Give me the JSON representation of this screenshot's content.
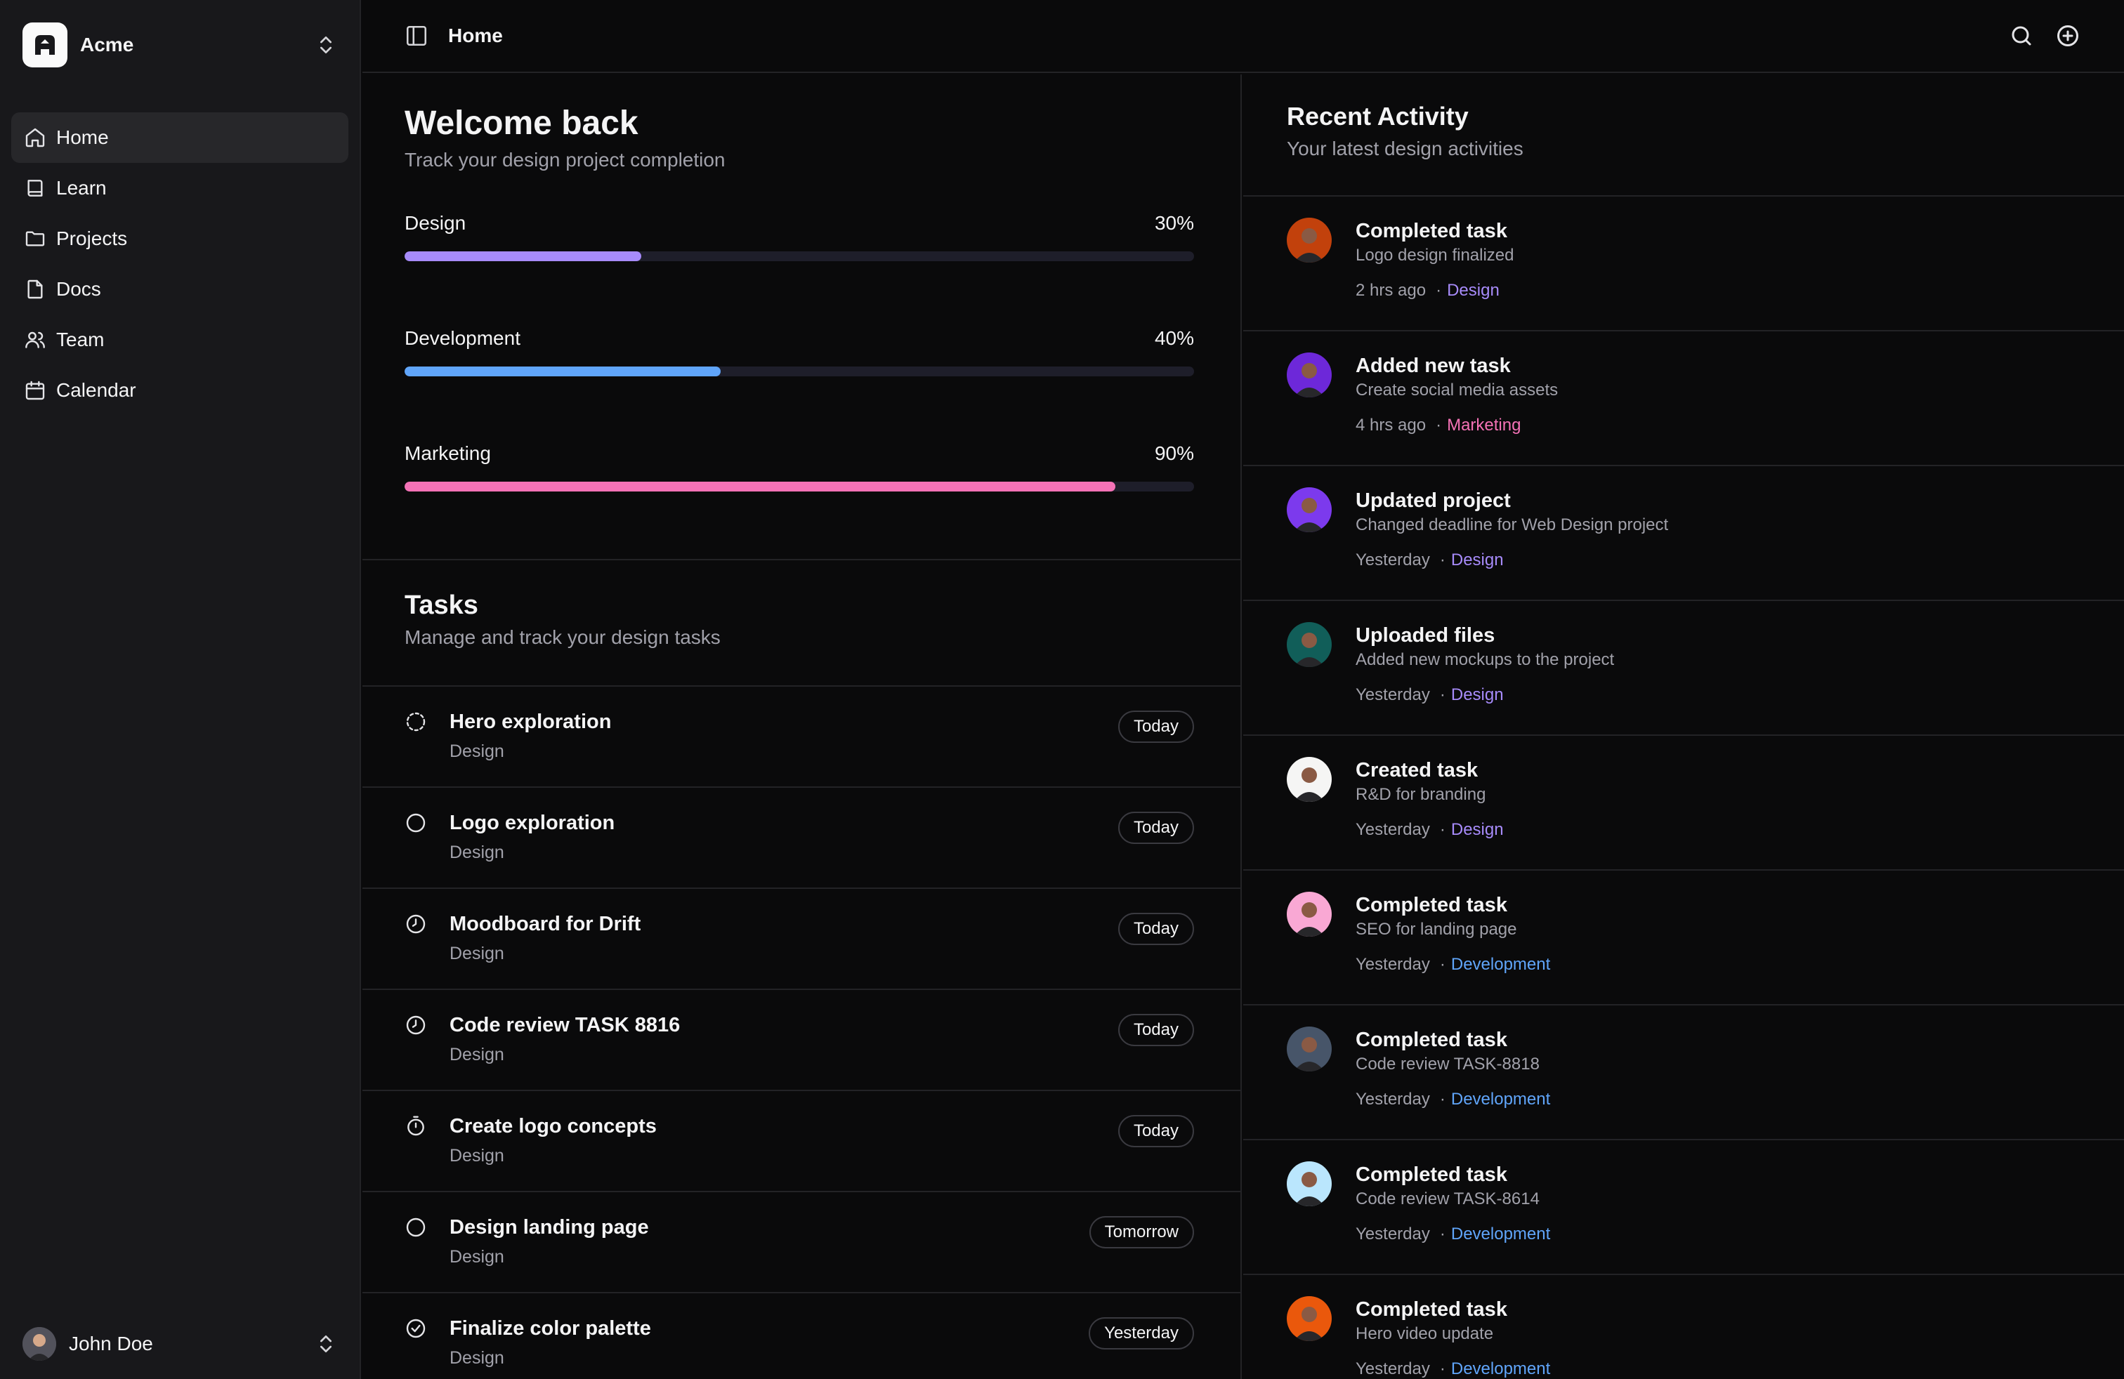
{
  "workspace": {
    "name": "Acme"
  },
  "nav": [
    {
      "label": "Home",
      "icon": "home-icon",
      "active": true
    },
    {
      "label": "Learn",
      "icon": "book-icon"
    },
    {
      "label": "Projects",
      "icon": "folder-icon"
    },
    {
      "label": "Docs",
      "icon": "file-icon"
    },
    {
      "label": "Team",
      "icon": "users-icon"
    },
    {
      "label": "Calendar",
      "icon": "calendar-icon"
    }
  ],
  "user": {
    "name": "John Doe"
  },
  "header": {
    "title": "Home"
  },
  "welcome": {
    "title": "Welcome back",
    "subtitle": "Track your design project completion",
    "progress": [
      {
        "label": "Design",
        "value_label": "30%",
        "fraction": 0.3,
        "color": "#a78bfa"
      },
      {
        "label": "Development",
        "value_label": "40%",
        "fraction": 0.4,
        "color": "#60a5fa"
      },
      {
        "label": "Marketing",
        "value_label": "90%",
        "fraction": 0.9,
        "color": "#f472b6"
      }
    ]
  },
  "tasks": {
    "title": "Tasks",
    "subtitle": "Manage and track your design tasks",
    "items": [
      {
        "title": "Hero exploration",
        "category": "Design",
        "due": "Today",
        "status": "dashed-circle"
      },
      {
        "title": "Logo exploration",
        "category": "Design",
        "due": "Today",
        "status": "circle"
      },
      {
        "title": "Moodboard for Drift",
        "category": "Design",
        "due": "Today",
        "status": "clock"
      },
      {
        "title": "Code review TASK 8816",
        "category": "Design",
        "due": "Today",
        "status": "clock"
      },
      {
        "title": "Create logo concepts",
        "category": "Design",
        "due": "Today",
        "status": "timer"
      },
      {
        "title": "Design landing page",
        "category": "Design",
        "due": "Tomorrow",
        "status": "circle"
      },
      {
        "title": "Finalize color palette",
        "category": "Design",
        "due": "Yesterday",
        "status": "check-circle"
      }
    ]
  },
  "activity": {
    "title": "Recent Activity",
    "subtitle": "Your latest design activities",
    "items": [
      {
        "title": "Completed task",
        "desc": "Logo design finalized",
        "time": "2 hrs ago",
        "tag": "Design",
        "tag_color": "#a78bfa",
        "avatar_color": "#c2410c"
      },
      {
        "title": "Added new task",
        "desc": "Create social media assets",
        "time": "4 hrs ago",
        "tag": "Marketing",
        "tag_color": "#f472b6",
        "avatar_color": "#6d28d9"
      },
      {
        "title": "Updated project",
        "desc": "Changed deadline for Web Design project",
        "time": "Yesterday",
        "tag": "Design",
        "tag_color": "#a78bfa",
        "avatar_color": "#7c3aed"
      },
      {
        "title": "Uploaded files",
        "desc": "Added new mockups to the project",
        "time": "Yesterday",
        "tag": "Design",
        "tag_color": "#a78bfa",
        "avatar_color": "#115e59"
      },
      {
        "title": "Created task",
        "desc": "R&D for branding",
        "time": "Yesterday",
        "tag": "Design",
        "tag_color": "#a78bfa",
        "avatar_color": "#f5f5f4"
      },
      {
        "title": "Completed task",
        "desc": "SEO for landing page",
        "time": "Yesterday",
        "tag": "Development",
        "tag_color": "#60a5fa",
        "avatar_color": "#f9a8d4"
      },
      {
        "title": "Completed task",
        "desc": "Code review TASK-8818",
        "time": "Yesterday",
        "tag": "Development",
        "tag_color": "#60a5fa",
        "avatar_color": "#475569"
      },
      {
        "title": "Completed task",
        "desc": "Code review TASK-8614",
        "time": "Yesterday",
        "tag": "Development",
        "tag_color": "#60a5fa",
        "avatar_color": "#bae6fd"
      },
      {
        "title": "Completed task",
        "desc": "Hero video update",
        "time": "Yesterday",
        "tag": "Development",
        "tag_color": "#60a5fa",
        "avatar_color": "#ea580c"
      }
    ]
  }
}
